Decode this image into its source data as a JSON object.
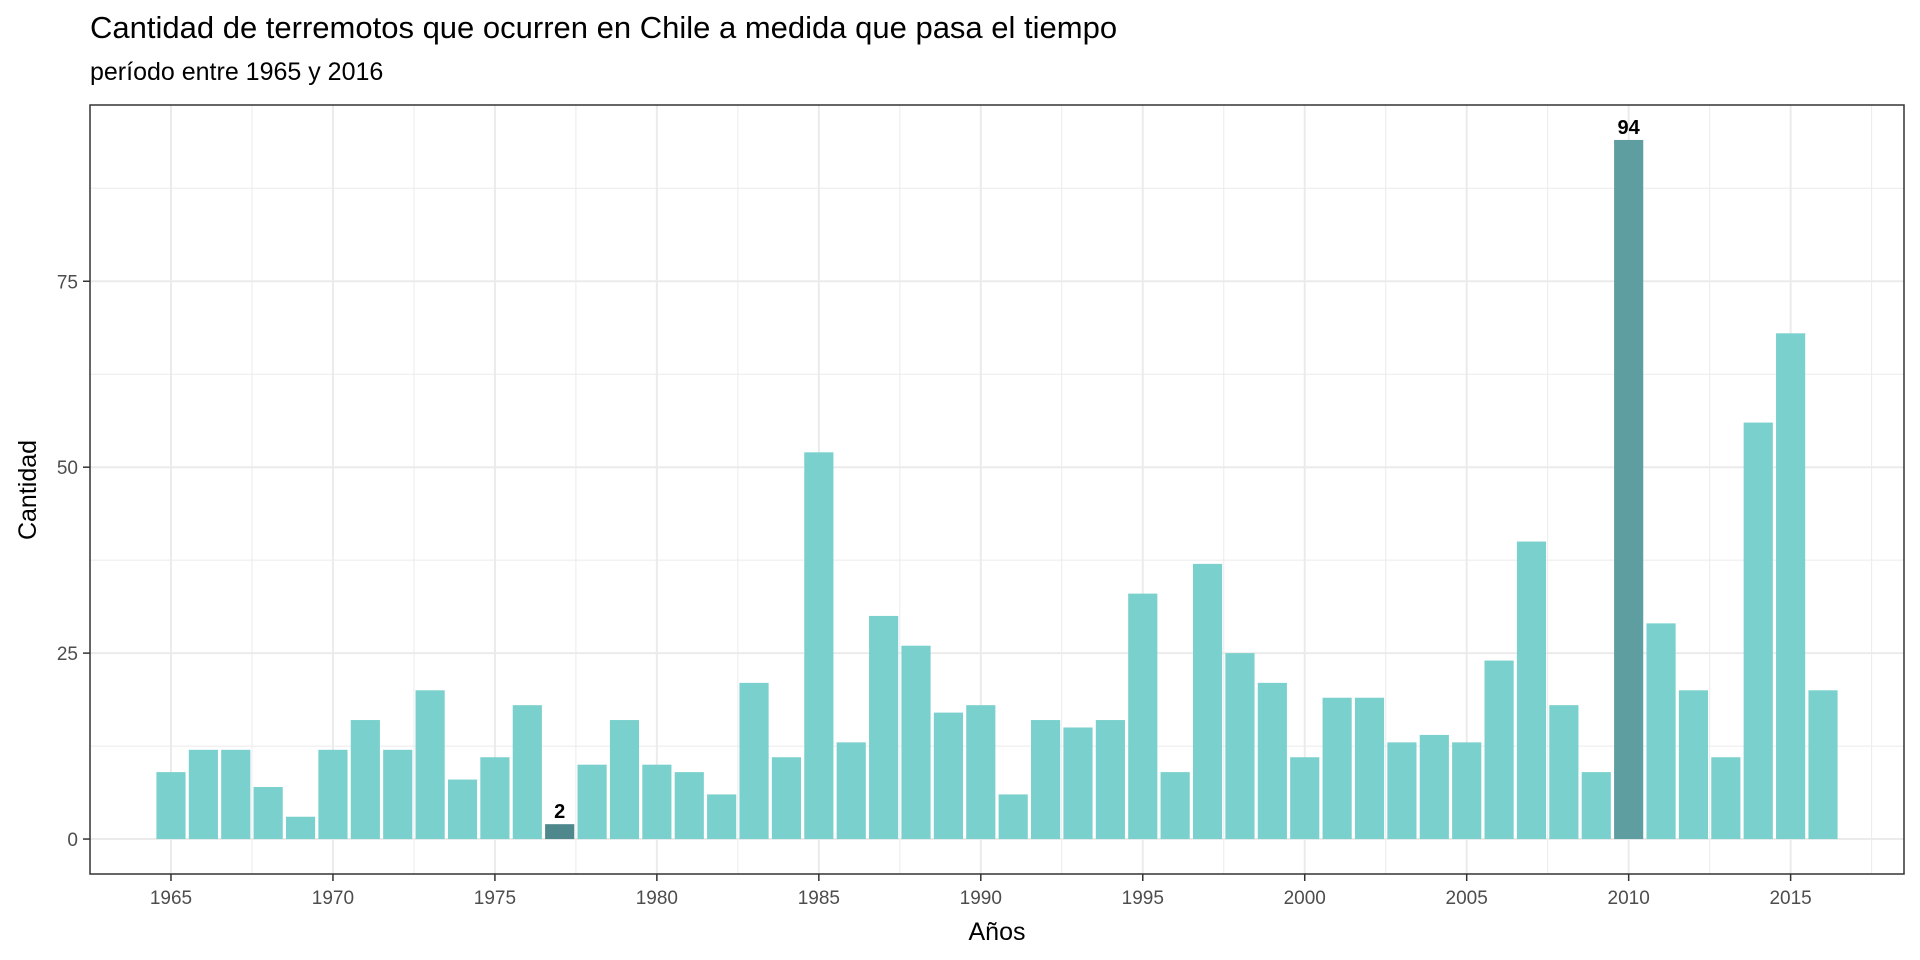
{
  "chart_data": {
    "type": "bar",
    "title": "Cantidad de terremotos que ocurren en Chile a medida que pasa el tiempo",
    "subtitle": "período entre 1965 y 2016",
    "xlabel": "Años",
    "ylabel": "Cantidad",
    "x": [
      1965,
      1966,
      1967,
      1968,
      1969,
      1970,
      1971,
      1972,
      1973,
      1974,
      1975,
      1976,
      1977,
      1978,
      1979,
      1980,
      1981,
      1982,
      1983,
      1984,
      1985,
      1986,
      1987,
      1988,
      1989,
      1990,
      1991,
      1992,
      1993,
      1994,
      1995,
      1996,
      1997,
      1998,
      1999,
      2000,
      2001,
      2002,
      2003,
      2004,
      2005,
      2006,
      2007,
      2008,
      2009,
      2010,
      2011,
      2012,
      2013,
      2014,
      2015,
      2016
    ],
    "values": [
      9,
      12,
      12,
      7,
      3,
      12,
      16,
      12,
      20,
      8,
      11,
      18,
      2,
      10,
      16,
      10,
      9,
      6,
      21,
      11,
      52,
      13,
      30,
      26,
      17,
      18,
      6,
      16,
      15,
      16,
      33,
      9,
      37,
      25,
      21,
      11,
      19,
      19,
      13,
      14,
      13,
      24,
      40,
      18,
      9,
      94,
      29,
      20,
      11,
      56,
      68,
      20
    ],
    "x_ticks": [
      1965,
      1970,
      1975,
      1980,
      1985,
      1990,
      1995,
      2000,
      2005,
      2010,
      2015
    ],
    "y_ticks": [
      0,
      25,
      50,
      75
    ],
    "xlim": [
      1962.5,
      2018.5
    ],
    "ylim": [
      -4.7,
      98.7
    ],
    "highlight": [
      {
        "x": 1977,
        "value": 2,
        "label": "2",
        "color": "#4e878c"
      },
      {
        "x": 2010,
        "value": 94,
        "label": "94",
        "color": "#5f9ea0"
      }
    ],
    "bar_color": "#79d0cd",
    "grid": true,
    "legend": "none",
    "panel_border_color": "#333333",
    "grid_color": "#ebebeb"
  }
}
